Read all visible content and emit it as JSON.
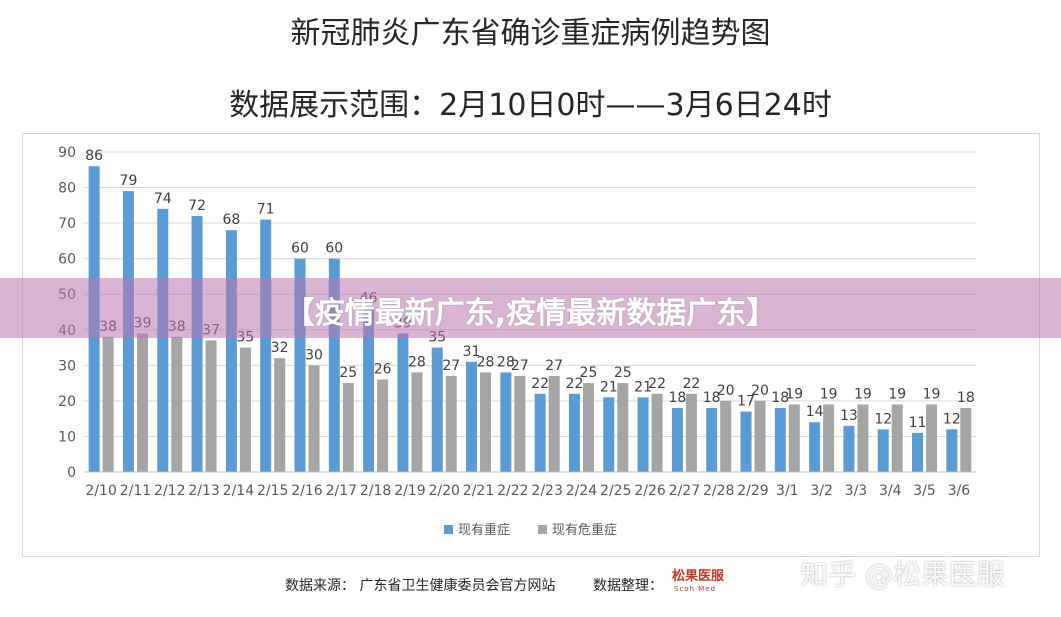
{
  "title": "新冠肺炎广东省确诊重症病例趋势图",
  "subtitle": "数据展示范围：2月10日0时——3月6日24时",
  "banner": "【疫情最新广东,疫情最新数据广东】",
  "footer": {
    "source": "数据来源：  广东省卫生健康委员会官方网站",
    "organizer_label": "数据整理：",
    "logo_text": "松果医服",
    "logo_sub": "Scoh Med"
  },
  "watermark": "知乎 @松果医服",
  "chart_data": {
    "type": "bar",
    "categories": [
      "2/10",
      "2/11",
      "2/12",
      "2/13",
      "2/14",
      "2/15",
      "2/16",
      "2/17",
      "2/18",
      "2/19",
      "2/20",
      "2/21",
      "2/22",
      "2/23",
      "2/24",
      "2/25",
      "2/26",
      "2/27",
      "2/28",
      "2/29",
      "3/1",
      "3/2",
      "3/3",
      "3/4",
      "3/5",
      "3/6"
    ],
    "series": [
      {
        "name": "现有重症",
        "color": "#5b9bd5",
        "values": [
          86,
          79,
          74,
          72,
          68,
          71,
          60,
          60,
          46,
          39,
          35,
          31,
          28,
          22,
          22,
          21,
          21,
          18,
          18,
          17,
          18,
          14,
          13,
          12,
          11,
          12
        ]
      },
      {
        "name": "现有危重症",
        "color": "#a5a5a5",
        "values": [
          38,
          39,
          38,
          37,
          35,
          32,
          30,
          25,
          26,
          28,
          27,
          28,
          27,
          27,
          25,
          25,
          22,
          22,
          20,
          20,
          19,
          19,
          19,
          19,
          19,
          18
        ]
      }
    ],
    "ylim": [
      0,
      90
    ],
    "yticks": [
      0,
      10,
      20,
      30,
      40,
      50,
      60,
      70,
      80,
      90
    ],
    "grid": true,
    "legend": "bottom"
  }
}
